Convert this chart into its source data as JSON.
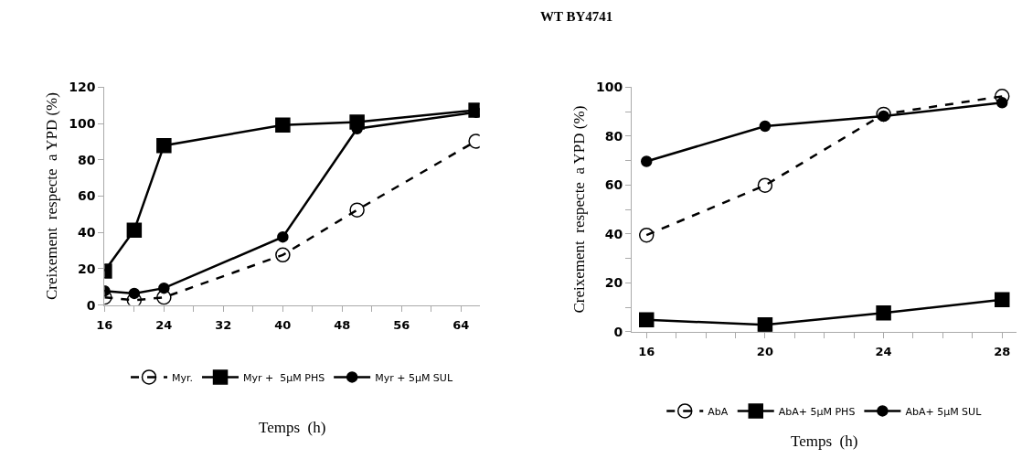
{
  "chart_data": [
    {
      "type": "line",
      "xlabel": "Temps  (h)",
      "ylabel": "Creixement  respecte  a YPD (%)",
      "x": [
        16,
        20,
        24,
        40,
        50,
        66
      ],
      "xlim": [
        16,
        66.5
      ],
      "xticks": [
        16,
        {
          "value": 20,
          "label": null
        },
        24,
        {
          "value": 28,
          "label": null
        },
        32,
        {
          "value": 36,
          "label": null
        },
        40,
        {
          "value": 44,
          "label": null
        },
        48,
        {
          "value": 52,
          "label": null
        },
        56,
        {
          "value": 60,
          "label": null
        },
        64
      ],
      "ylim": [
        0,
        120
      ],
      "yticks": [
        0,
        20,
        40,
        60,
        80,
        100,
        120
      ],
      "grid": false,
      "legend": "bottom",
      "series": [
        {
          "name": "Myr.",
          "color": "#000000",
          "marker": "circle-open",
          "line_style": "dashed",
          "values": [
            4.2,
            2.7,
            4.2,
            27.6,
            52.4,
            90.3
          ]
        },
        {
          "name": "Myr +  5µM PHS",
          "color": "#000000",
          "marker": "square",
          "line_style": "solid",
          "values": [
            18.7,
            41.3,
            87.9,
            99.2,
            100.8,
            107.4
          ]
        },
        {
          "name": "Myr + 5µM SUL",
          "color": "#000000",
          "marker": "circle",
          "line_style": "solid",
          "values": [
            7.8,
            6.4,
            9.3,
            37.5,
            97.2,
            106.3
          ]
        }
      ]
    },
    {
      "type": "line",
      "title": "WT BY4741",
      "xlabel": "Temps  (h)",
      "ylabel": "Creixement  respecte  a YPD (%)",
      "x": [
        16,
        20,
        24,
        28
      ],
      "xlim": [
        15.5,
        28.5
      ],
      "xticks": [
        16,
        {
          "value": 17,
          "label": null
        },
        {
          "value": 18,
          "label": null
        },
        {
          "value": 19,
          "label": null
        },
        20,
        {
          "value": 21,
          "label": null
        },
        {
          "value": 22,
          "label": null
        },
        {
          "value": 23,
          "label": null
        },
        24,
        {
          "value": 25,
          "label": null
        },
        {
          "value": 26,
          "label": null
        },
        {
          "value": 27,
          "label": null
        },
        28
      ],
      "ylim": [
        0,
        100
      ],
      "yticks": [
        0,
        {
          "value": 10,
          "label": null
        },
        20,
        {
          "value": 30,
          "label": null
        },
        40,
        {
          "value": 50,
          "label": null
        },
        60,
        {
          "value": 70,
          "label": null
        },
        80,
        {
          "value": 90,
          "label": null
        },
        100
      ],
      "grid": false,
      "legend": "bottom",
      "series": [
        {
          "name": "AbA",
          "color": "#000000",
          "marker": "circle-open",
          "line_style": "dashed",
          "values": [
            39.5,
            59.9,
            89,
            96.3
          ]
        },
        {
          "name": "AbA+ 5µM PHS",
          "color": "#000000",
          "marker": "square",
          "line_style": "solid",
          "values": [
            4.9,
            2.8,
            7.7,
            13.1
          ]
        },
        {
          "name": "AbA+ 5µM SUL",
          "color": "#000000",
          "marker": "circle",
          "line_style": "solid",
          "values": [
            69.7,
            84.1,
            88.2,
            93.7
          ]
        }
      ]
    }
  ]
}
